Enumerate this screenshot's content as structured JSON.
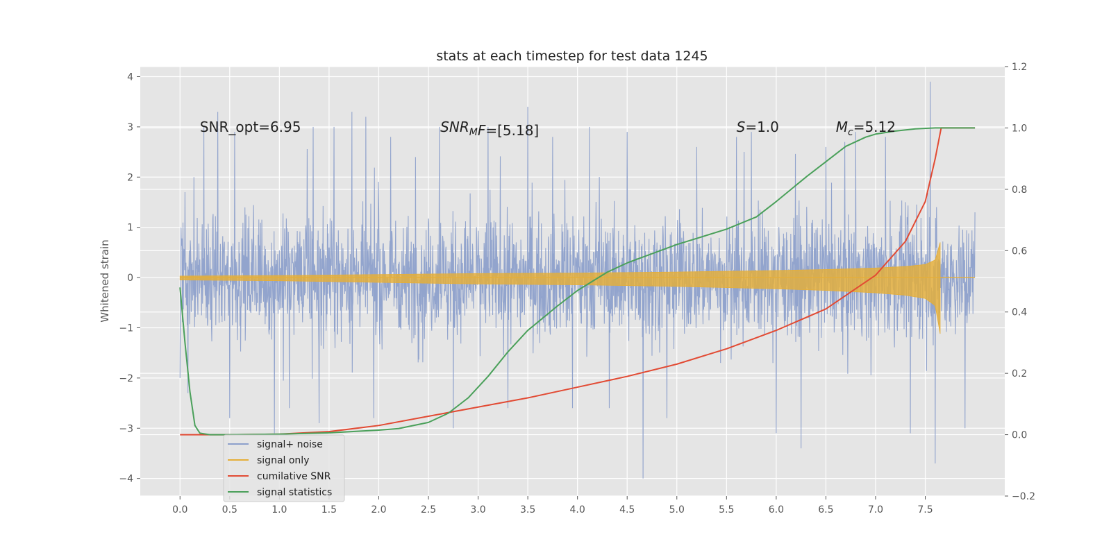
{
  "chart_data": {
    "type": "line",
    "title": "stats at each timestep for test data 1245",
    "xlabel": "",
    "ylabel": "Whitened strain",
    "y2label": "",
    "xlim": [
      -0.4,
      8.3
    ],
    "ylim": [
      -4.35,
      4.2
    ],
    "y2lim": [
      -0.2,
      1.2
    ],
    "x_ticks": [
      "0.0",
      "0.5",
      "1.0",
      "1.5",
      "2.0",
      "2.5",
      "3.0",
      "3.5",
      "4.0",
      "4.5",
      "5.0",
      "5.5",
      "6.0",
      "6.5",
      "7.0",
      "7.5"
    ],
    "y_ticks": [
      "4",
      "3",
      "2",
      "1",
      "0",
      "−1",
      "−2",
      "−3",
      "−4"
    ],
    "y2_ticks": [
      "1.2",
      "1.0",
      "0.8",
      "0.6",
      "0.4",
      "0.2",
      "0.0",
      "−0.2"
    ],
    "grid": true,
    "legend_position": "lower-left",
    "annotations": [
      {
        "text": "SNR_opt=6.95",
        "x": 0.2,
        "y": 3.0
      },
      {
        "text": "SNR_MF=[5.18]",
        "x": 2.62,
        "y": 3.0
      },
      {
        "text": "S=1.0",
        "x": 5.6,
        "y": 3.0
      },
      {
        "text": "M_c=5.12",
        "x": 6.6,
        "y": 3.0
      }
    ],
    "series": [
      {
        "name": "signal+ noise",
        "axis": "left",
        "color": "#8da0cb",
        "x_range": [
          0.0,
          8.0
        ],
        "typical_amplitude": [
          -1.5,
          1.5
        ],
        "peak_values": [
          {
            "x": 0.0,
            "y": -2.0
          },
          {
            "x": 0.05,
            "y": 1.7
          },
          {
            "x": 0.08,
            "y": -2.3
          },
          {
            "x": 0.14,
            "y": 2.0
          },
          {
            "x": 0.24,
            "y": 3.0
          },
          {
            "x": 0.38,
            "y": 3.3
          },
          {
            "x": 0.5,
            "y": -2.8
          },
          {
            "x": 0.55,
            "y": 2.9
          },
          {
            "x": 0.95,
            "y": -3.1
          },
          {
            "x": 1.1,
            "y": -2.6
          },
          {
            "x": 1.34,
            "y": 3.0
          },
          {
            "x": 1.4,
            "y": -2.9
          },
          {
            "x": 1.55,
            "y": 3.0
          },
          {
            "x": 1.73,
            "y": 3.3
          },
          {
            "x": 1.87,
            "y": 3.2
          },
          {
            "x": 1.95,
            "y": -2.8
          },
          {
            "x": 2.12,
            "y": 2.8
          },
          {
            "x": 2.37,
            "y": 2.4
          },
          {
            "x": 2.61,
            "y": 3.0
          },
          {
            "x": 2.75,
            "y": -3.0
          },
          {
            "x": 3.1,
            "y": 3.0
          },
          {
            "x": 3.3,
            "y": -2.6
          },
          {
            "x": 3.5,
            "y": 3.4
          },
          {
            "x": 3.75,
            "y": 2.8
          },
          {
            "x": 3.95,
            "y": -2.6
          },
          {
            "x": 4.12,
            "y": 3.0
          },
          {
            "x": 4.32,
            "y": -2.6
          },
          {
            "x": 4.5,
            "y": 2.9
          },
          {
            "x": 4.66,
            "y": -4.0
          },
          {
            "x": 4.9,
            "y": -2.8
          },
          {
            "x": 5.2,
            "y": 2.6
          },
          {
            "x": 5.6,
            "y": 2.8
          },
          {
            "x": 5.75,
            "y": 2.9
          },
          {
            "x": 6.0,
            "y": -3.1
          },
          {
            "x": 6.25,
            "y": -3.4
          },
          {
            "x": 6.5,
            "y": 2.6
          },
          {
            "x": 6.8,
            "y": 2.9
          },
          {
            "x": 7.1,
            "y": 2.8
          },
          {
            "x": 7.35,
            "y": -3.1
          },
          {
            "x": 7.55,
            "y": 3.9
          },
          {
            "x": 7.6,
            "y": -3.7
          },
          {
            "x": 7.9,
            "y": -3.0
          },
          {
            "x": 8.0,
            "y": 1.3
          }
        ]
      },
      {
        "name": "signal only",
        "axis": "left",
        "color": "#e5ae38",
        "x": [
          0.0,
          1.0,
          2.0,
          3.0,
          4.0,
          5.0,
          6.0,
          6.5,
          7.0,
          7.3,
          7.5,
          7.6,
          7.65,
          7.66,
          8.0
        ],
        "envelope": [
          0.03,
          0.04,
          0.06,
          0.08,
          0.09,
          0.11,
          0.14,
          0.16,
          0.19,
          0.22,
          0.26,
          0.35,
          0.7,
          0.0,
          0.0
        ]
      },
      {
        "name": "cumilative SNR",
        "axis": "right",
        "color": "#e24a33",
        "x": [
          0.0,
          0.5,
          1.0,
          1.5,
          2.0,
          2.5,
          3.0,
          3.5,
          4.0,
          4.5,
          5.0,
          5.5,
          6.0,
          6.5,
          7.0,
          7.3,
          7.5,
          7.6,
          7.66,
          8.0
        ],
        "values": [
          0.0,
          0.0,
          0.002,
          0.01,
          0.03,
          0.06,
          0.09,
          0.12,
          0.155,
          0.19,
          0.23,
          0.28,
          0.34,
          0.41,
          0.52,
          0.63,
          0.76,
          0.9,
          1.0,
          1.0
        ]
      },
      {
        "name": "signal statistics",
        "axis": "right",
        "color": "#348abd",
        "draw_color": "#4aa05a",
        "x": [
          0.0,
          0.05,
          0.1,
          0.15,
          0.2,
          0.3,
          0.5,
          1.0,
          1.5,
          2.0,
          2.2,
          2.5,
          2.7,
          2.9,
          3.1,
          3.3,
          3.5,
          3.8,
          4.0,
          4.3,
          4.5,
          5.0,
          5.5,
          5.8,
          6.0,
          6.3,
          6.5,
          6.7,
          6.9,
          7.0,
          7.2,
          7.4,
          7.6,
          7.66,
          8.0
        ],
        "values": [
          0.48,
          0.3,
          0.14,
          0.03,
          0.005,
          0.0,
          0.0,
          0.002,
          0.006,
          0.015,
          0.02,
          0.04,
          0.07,
          0.12,
          0.19,
          0.27,
          0.34,
          0.42,
          0.47,
          0.53,
          0.56,
          0.62,
          0.67,
          0.71,
          0.76,
          0.84,
          0.89,
          0.94,
          0.97,
          0.98,
          0.99,
          0.997,
          1.0,
          1.0,
          1.0
        ]
      }
    ]
  }
}
